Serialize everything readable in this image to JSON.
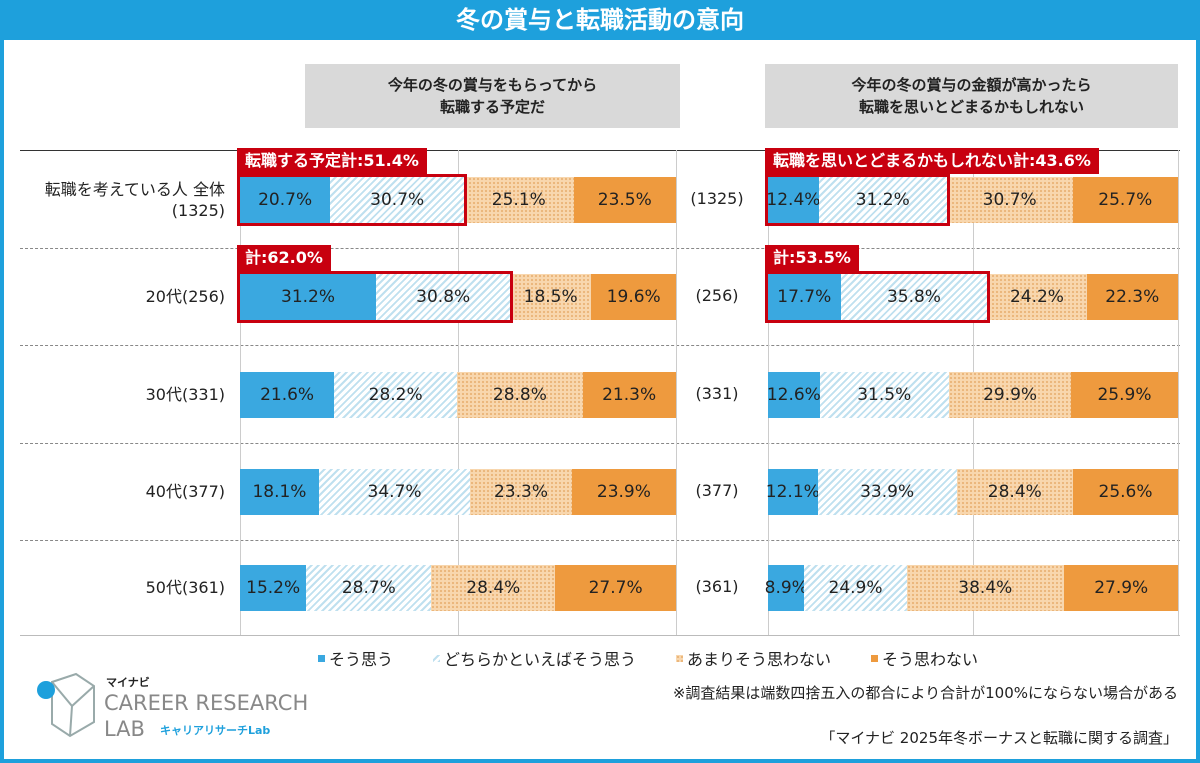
{
  "title": "冬の賞与と転職活動の意向",
  "chart_data": [
    {
      "type": "bar",
      "stacked": true,
      "orientation": "horizontal",
      "title": "今年の冬の賞与をもらってから\n転職する予定だ",
      "categories": [
        "転職を考えている人 全体\n(1325)",
        "20代(256)",
        "30代(331)",
        "40代(377)",
        "50代(361)"
      ],
      "series": [
        {
          "name": "そう思う",
          "values": [
            20.7,
            31.2,
            21.6,
            18.1,
            15.2
          ]
        },
        {
          "name": "どちらかといえばそう思う",
          "values": [
            30.7,
            30.8,
            28.2,
            34.7,
            28.7
          ]
        },
        {
          "name": "あまりそう思わない",
          "values": [
            25.1,
            18.5,
            28.8,
            23.3,
            28.4
          ]
        },
        {
          "name": "そう思わない",
          "values": [
            23.5,
            19.6,
            21.3,
            23.9,
            27.7
          ]
        }
      ],
      "value_labels": [
        [
          "20.7%",
          "30.7%",
          "25.1%",
          "23.5%"
        ],
        [
          "31.2%",
          "30.8%",
          "18.5%",
          "19.6%"
        ],
        [
          "21.6%",
          "28.2%",
          "28.8%",
          "21.3%"
        ],
        [
          "18.1%",
          "34.7%",
          "23.3%",
          "23.9%"
        ],
        [
          "15.2%",
          "28.7%",
          "28.4%",
          "27.7%"
        ]
      ],
      "annotations": [
        {
          "row": 0,
          "text": "転職する予定計:51.4%"
        },
        {
          "row": 1,
          "text": "計:62.0%"
        }
      ],
      "xlim": [
        0,
        100
      ]
    },
    {
      "type": "bar",
      "stacked": true,
      "orientation": "horizontal",
      "title": "今年の冬の賞与の金額が高かったら\n転職を思いとどまるかもしれない",
      "categories": [
        "(1325)",
        "(256)",
        "(331)",
        "(377)",
        "(361)"
      ],
      "series": [
        {
          "name": "そう思う",
          "values": [
            12.4,
            17.7,
            12.6,
            12.1,
            8.9
          ]
        },
        {
          "name": "どちらかといえばそう思う",
          "values": [
            31.2,
            35.8,
            31.5,
            33.9,
            24.9
          ]
        },
        {
          "name": "あまりそう思わない",
          "values": [
            30.7,
            24.2,
            29.9,
            28.4,
            38.4
          ]
        },
        {
          "name": "そう思わない",
          "values": [
            25.7,
            22.3,
            25.9,
            25.6,
            27.9
          ]
        }
      ],
      "value_labels": [
        [
          "12.4%",
          "31.2%",
          "30.7%",
          "25.7%"
        ],
        [
          "17.7%",
          "35.8%",
          "24.2%",
          "22.3%"
        ],
        [
          "12.6%",
          "31.5%",
          "29.9%",
          "25.9%"
        ],
        [
          "12.1%",
          "33.9%",
          "28.4%",
          "25.6%"
        ],
        [
          "8.9%",
          "24.9%",
          "38.4%",
          "27.9%"
        ]
      ],
      "annotations": [
        {
          "row": 0,
          "text": "転職を思いとどまるかもしれない計:43.6%"
        },
        {
          "row": 1,
          "text": "計:53.5%"
        }
      ],
      "xlim": [
        0,
        100
      ]
    }
  ],
  "legend": [
    "そう思う",
    "どちらかといえばそう思う",
    "あまりそう思わない",
    "そう思わない"
  ],
  "colors": {
    "accent": "#1ea0dc",
    "highlight": "#c8000f",
    "s0": "#3aa8e0",
    "s1": "#bfe0ef",
    "s2": "#f8d7ae",
    "s3": "#ee9a3e"
  },
  "note": "※調査結果は端数四捨五入の都合により合計が100%にならない場合がある",
  "source": "「マイナビ 2025年冬ボーナスと転職に関する調査」",
  "logo": {
    "brand": "マイナビ",
    "line1": "CAREER RESEARCH",
    "line2": "LAB",
    "sub": "キャリアリサーチLab"
  }
}
